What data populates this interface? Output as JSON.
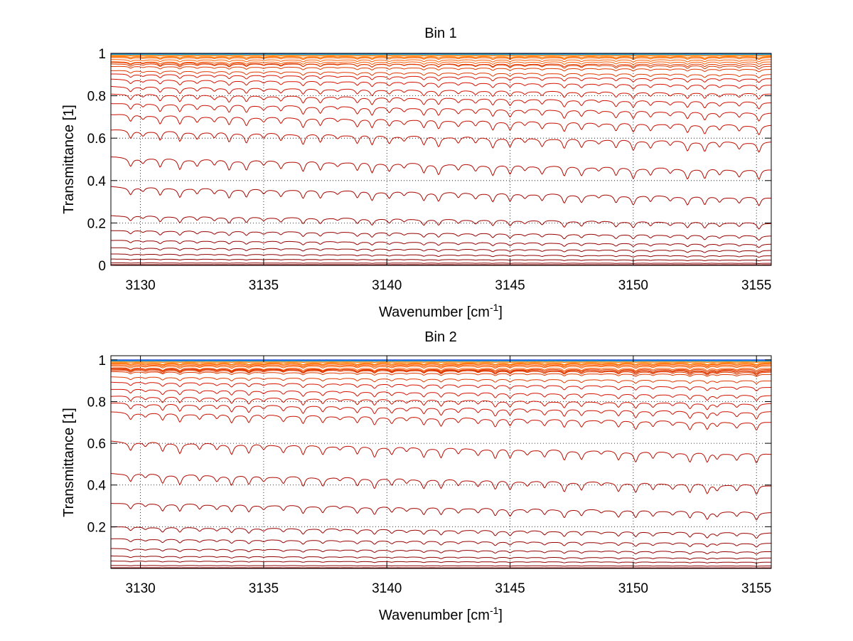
{
  "chart_data": [
    {
      "type": "line",
      "title": "Bin 1",
      "xlabel": "Wavenumber [cm",
      "xlabel_superscript": "-1",
      "xlabel_suffix": "]",
      "ylabel": "Transmittance [1]",
      "xlim": [
        3128.8,
        3155.6
      ],
      "ylim": [
        0,
        1
      ],
      "xticks": [
        3130,
        3135,
        3140,
        3145,
        3150,
        3155
      ],
      "xtick_labels": [
        "3130",
        "3135",
        "3140",
        "3145",
        "3150",
        "3155"
      ],
      "yticks": [
        0,
        0.2,
        0.4,
        0.6,
        0.8,
        1
      ],
      "ytick_labels": [
        "0",
        "0.2",
        "0.4",
        "0.6",
        "0.8",
        "1"
      ],
      "grid": true,
      "series_baselines": [
        1.0,
        0.998,
        0.995,
        0.99,
        0.985,
        0.98,
        0.97,
        0.96,
        0.95,
        0.94,
        0.925,
        0.9,
        0.88,
        0.85,
        0.81,
        0.77,
        0.72,
        0.66,
        0.58,
        0.45,
        0.32,
        0.2,
        0.14,
        0.1,
        0.07,
        0.045,
        0.025,
        0.01,
        0.003,
        0.0
      ],
      "absorption_lines": [
        3129.6,
        3130.1,
        3130.8,
        3131.6,
        3132.3,
        3133.0,
        3133.6,
        3134.3,
        3135.0,
        3135.7,
        3136.6,
        3137.3,
        3138.0,
        3138.8,
        3139.4,
        3140.1,
        3140.7,
        3141.5,
        3142.1,
        3142.9,
        3143.6,
        3144.3,
        3145.0,
        3145.6,
        3146.3,
        3147.2,
        3147.9,
        3148.6,
        3149.3,
        3150.0,
        3150.7,
        3151.5,
        3152.2,
        3152.9,
        3153.5,
        3154.3,
        3155.1
      ]
    },
    {
      "type": "line",
      "title": "Bin 2",
      "xlabel": "Wavenumber [cm",
      "xlabel_superscript": "-1",
      "xlabel_suffix": "]",
      "ylabel": "Transmittance [1]",
      "xlim": [
        3128.8,
        3155.6
      ],
      "ylim": [
        0,
        1.02
      ],
      "xticks": [
        3130,
        3135,
        3140,
        3145,
        3150,
        3155
      ],
      "xtick_labels": [
        "3130",
        "3135",
        "3140",
        "3145",
        "3150",
        "3155"
      ],
      "yticks": [
        0.2,
        0.4,
        0.6,
        0.8,
        1
      ],
      "ytick_labels": [
        "0.2",
        "0.4",
        "0.6",
        "0.8",
        "1"
      ],
      "grid": true,
      "series_baselines": [
        1.0,
        0.998,
        0.995,
        0.99,
        0.985,
        0.98,
        0.975,
        0.97,
        0.96,
        0.955,
        0.95,
        0.945,
        0.94,
        0.93,
        0.9,
        0.87,
        0.83,
        0.79,
        0.75,
        0.7,
        0.55,
        0.4,
        0.27,
        0.17,
        0.12,
        0.08,
        0.05,
        0.03,
        0.012,
        0.003
      ],
      "absorption_lines": [
        3129.6,
        3130.2,
        3130.9,
        3131.6,
        3132.4,
        3133.1,
        3133.7,
        3134.4,
        3135.0,
        3135.8,
        3136.6,
        3137.4,
        3138.1,
        3138.8,
        3139.5,
        3140.2,
        3140.8,
        3141.5,
        3142.2,
        3142.9,
        3143.7,
        3144.4,
        3145.0,
        3145.7,
        3146.4,
        3147.2,
        3147.9,
        3148.7,
        3149.4,
        3150.1,
        3150.8,
        3151.6,
        3152.3,
        3153.0,
        3153.4,
        3154.2,
        3155.0
      ]
    }
  ]
}
